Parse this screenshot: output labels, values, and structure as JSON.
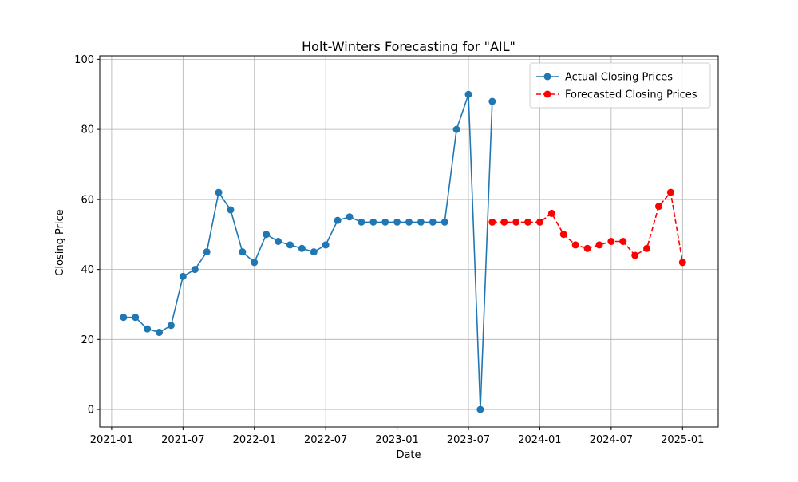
{
  "chart_data": {
    "type": "line",
    "title": "Holt-Winters Forecasting for \"AIL\"",
    "x_label": "Date",
    "y_label": "Closing Price",
    "xlim": [
      "2020-12",
      "2025-04"
    ],
    "xticks": [
      "2021-01",
      "2021-07",
      "2022-01",
      "2022-07",
      "2023-01",
      "2023-07",
      "2024-01",
      "2024-07",
      "2025-01"
    ],
    "ylim": [
      -5,
      101
    ],
    "yticks": [
      0,
      20,
      40,
      60,
      80,
      100
    ],
    "grid": true,
    "legend": "upper right",
    "series": [
      {
        "name": "Actual Closing Prices",
        "color": "#1f77b4",
        "linestyle": "solid",
        "x": [
          "2021-02",
          "2021-03",
          "2021-04",
          "2021-05",
          "2021-06",
          "2021-07",
          "2021-08",
          "2021-09",
          "2021-10",
          "2021-11",
          "2021-12",
          "2022-01",
          "2022-02",
          "2022-03",
          "2022-04",
          "2022-05",
          "2022-06",
          "2022-07",
          "2022-08",
          "2022-09",
          "2022-10",
          "2022-11",
          "2022-12",
          "2023-01",
          "2023-02",
          "2023-03",
          "2023-04",
          "2023-05",
          "2023-06",
          "2023-07",
          "2023-08",
          "2023-09"
        ],
        "values": [
          26.3,
          26.3,
          23,
          22,
          24,
          38,
          40,
          45,
          62,
          57,
          45,
          42,
          50,
          48,
          47,
          46,
          45,
          47,
          54,
          55,
          53.5,
          53.5,
          53.5,
          53.5,
          53.5,
          53.5,
          53.5,
          53.5,
          80,
          90,
          0,
          88
        ]
      },
      {
        "name": "Forecasted Closing Prices",
        "color": "#ff0000",
        "linestyle": "dashed",
        "x": [
          "2023-09",
          "2023-10",
          "2023-11",
          "2023-12",
          "2024-01",
          "2024-02",
          "2024-03",
          "2024-04",
          "2024-05",
          "2024-06",
          "2024-07",
          "2024-08",
          "2024-09",
          "2024-10",
          "2024-11",
          "2024-12",
          "2025-01"
        ],
        "values": [
          53.5,
          53.5,
          53.5,
          53.5,
          53.5,
          56,
          50,
          47,
          46,
          47,
          48,
          48,
          44,
          46,
          58,
          62,
          42
        ]
      }
    ]
  }
}
